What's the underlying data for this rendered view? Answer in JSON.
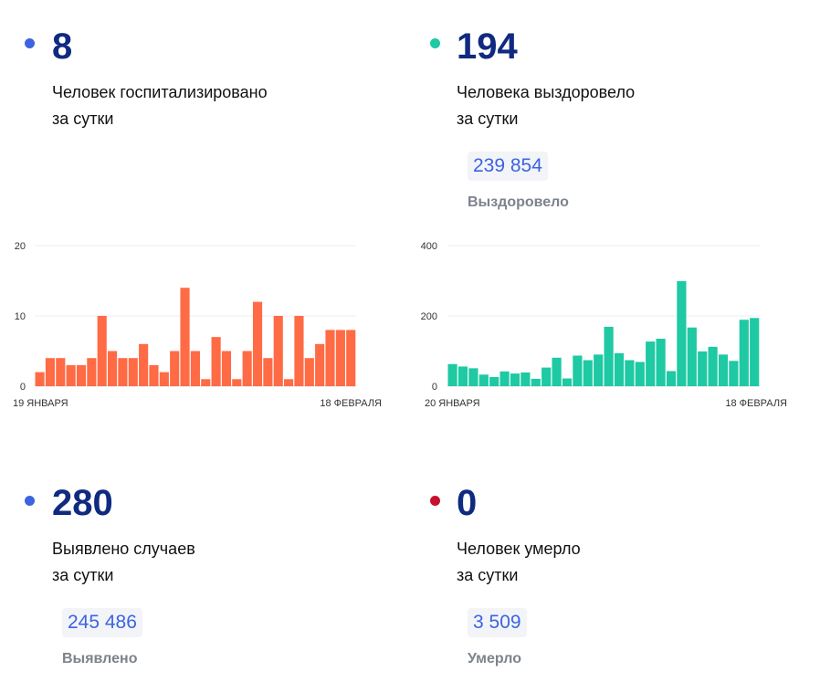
{
  "blocks": {
    "hospitalized": {
      "value": "8",
      "line1": "Человек госпитализировано",
      "line2": "за сутки",
      "dot_color": "#3d63e0"
    },
    "recovered": {
      "value": "194",
      "line1": "Человека выздоровело",
      "line2": "за сутки",
      "total": "239 854",
      "total_label": "Выздоровело",
      "dot_color": "#1ec9a3"
    },
    "cases": {
      "value": "280",
      "line1": "Выявлено случаев",
      "line2": "за сутки",
      "total": "245 486",
      "total_label": "Выявлено",
      "dot_color": "#3d63e0"
    },
    "deaths": {
      "value": "0",
      "line1": "Человек умерло",
      "line2": "за сутки",
      "total": "3 509",
      "total_label": "Умерло",
      "dot_color": "#c8102e"
    }
  },
  "chart_data": [
    {
      "type": "bar",
      "color": "#ff6b45",
      "ylim": [
        0,
        20
      ],
      "yticks": [
        "0",
        "10",
        "20"
      ],
      "x_start_label": "19 ЯНВАРЯ",
      "x_end_label": "18 ФЕВРАЛЯ",
      "values": [
        2,
        4,
        4,
        3,
        3,
        4,
        10,
        5,
        4,
        4,
        6,
        3,
        2,
        5,
        14,
        5,
        1,
        7,
        5,
        1,
        5,
        12,
        4,
        10,
        1,
        10,
        4,
        6,
        8,
        8,
        8
      ],
      "grid": true
    },
    {
      "type": "bar",
      "color": "#1ec9a3",
      "ylim": [
        0,
        400
      ],
      "yticks": [
        "0",
        "200",
        "400"
      ],
      "x_start_label": "20 ЯНВАРЯ",
      "x_end_label": "18 ФЕВРАЛЯ",
      "values": [
        63,
        56,
        51,
        33,
        26,
        42,
        36,
        39,
        21,
        53,
        81,
        22,
        87,
        74,
        90,
        169,
        94,
        74,
        69,
        127,
        135,
        43,
        299,
        167,
        99,
        112,
        90,
        72,
        189,
        194
      ],
      "grid": true
    }
  ]
}
